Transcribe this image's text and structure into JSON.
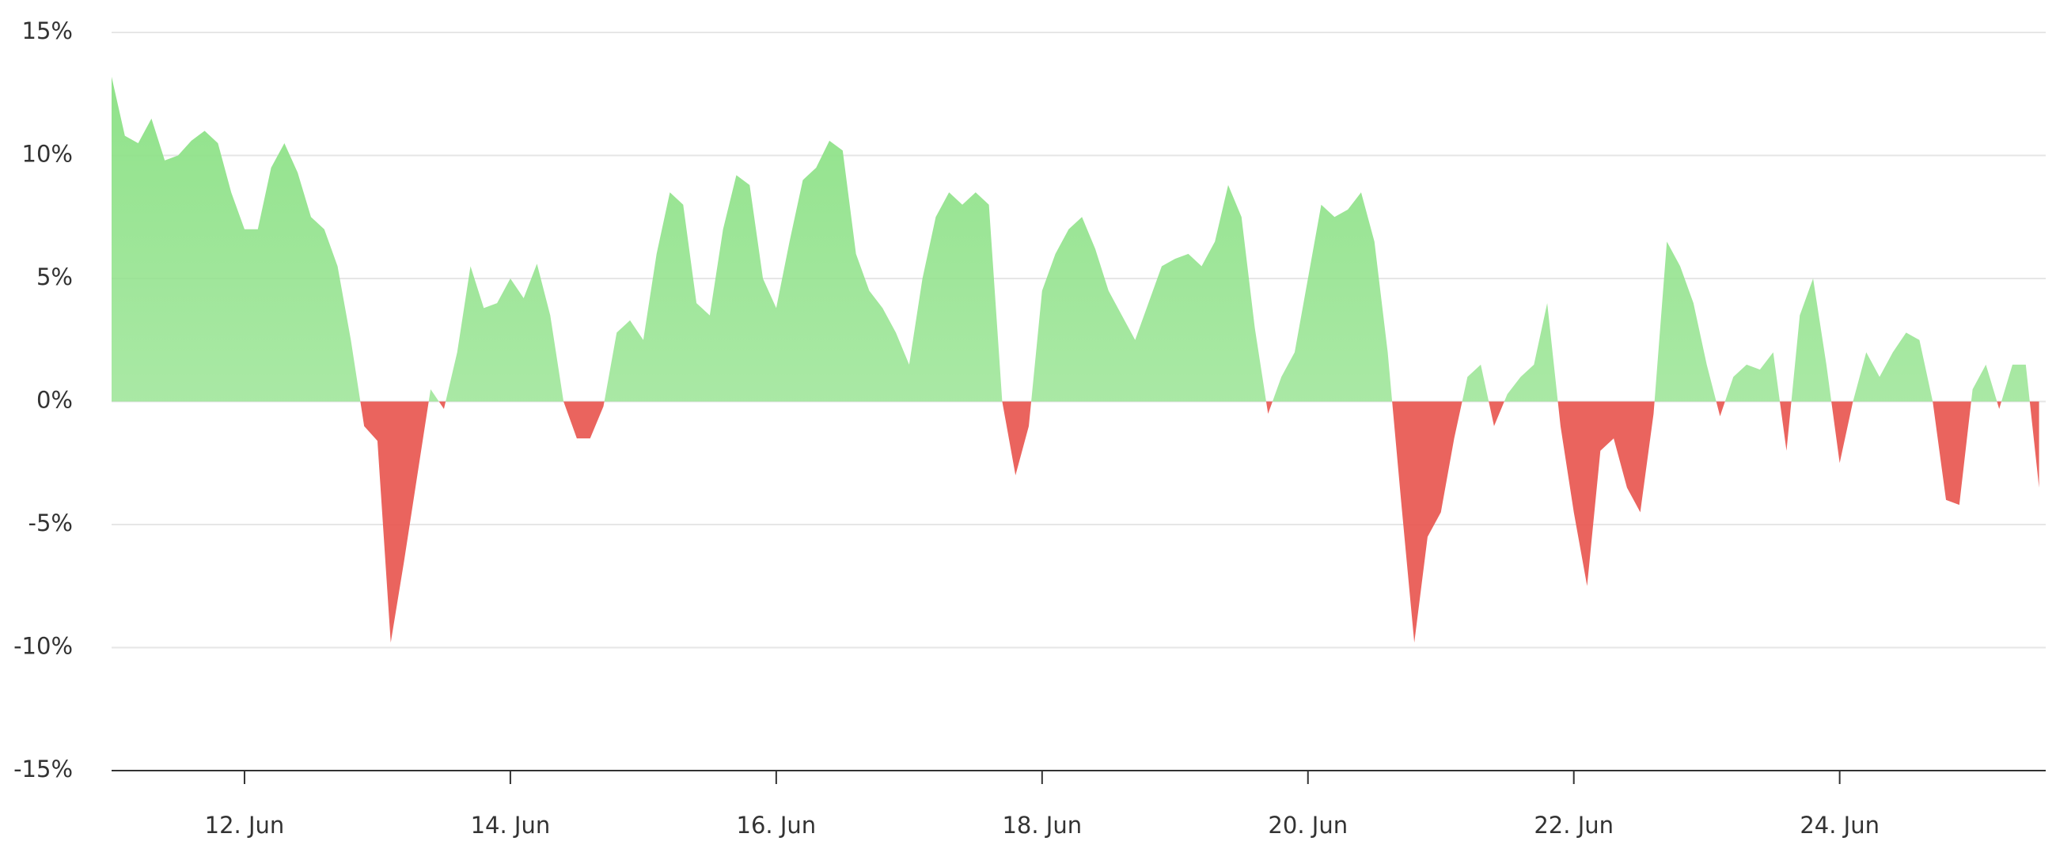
{
  "chart_data": {
    "type": "area",
    "x": [
      11.0,
      11.1,
      11.2,
      11.3,
      11.4,
      11.5,
      11.6,
      11.7,
      11.8,
      11.9,
      12.0,
      12.1,
      12.2,
      12.3,
      12.4,
      12.5,
      12.6,
      12.7,
      12.8,
      12.9,
      13.0,
      13.1,
      13.2,
      13.3,
      13.4,
      13.5,
      13.6,
      13.7,
      13.8,
      13.9,
      14.0,
      14.1,
      14.2,
      14.3,
      14.4,
      14.5,
      14.6,
      14.7,
      14.8,
      14.9,
      15.0,
      15.1,
      15.2,
      15.3,
      15.4,
      15.5,
      15.6,
      15.7,
      15.8,
      15.9,
      16.0,
      16.1,
      16.2,
      16.3,
      16.4,
      16.5,
      16.6,
      16.7,
      16.8,
      16.9,
      17.0,
      17.1,
      17.2,
      17.3,
      17.4,
      17.5,
      17.6,
      17.7,
      17.8,
      17.9,
      18.0,
      18.1,
      18.2,
      18.3,
      18.4,
      18.5,
      18.6,
      18.7,
      18.8,
      18.9,
      19.0,
      19.1,
      19.2,
      19.3,
      19.4,
      19.5,
      19.6,
      19.7,
      19.8,
      19.9,
      20.0,
      20.1,
      20.2,
      20.3,
      20.4,
      20.5,
      20.6,
      20.7,
      20.8,
      20.9,
      21.0,
      21.1,
      21.2,
      21.3,
      21.4,
      21.5,
      21.6,
      21.7,
      21.8,
      21.9,
      22.0,
      22.1,
      22.2,
      22.3,
      22.4,
      22.5,
      22.6,
      22.7,
      22.8,
      22.9,
      23.0,
      23.1,
      23.2,
      23.3,
      23.4,
      23.5,
      23.6,
      23.7,
      23.8,
      23.9,
      24.0,
      24.1,
      24.2,
      24.3,
      24.4,
      24.5,
      24.6,
      24.7,
      24.8,
      24.9,
      25.0,
      25.1,
      25.2,
      25.3,
      25.4,
      25.5
    ],
    "values": [
      13.2,
      10.8,
      10.5,
      11.5,
      9.8,
      10.0,
      10.6,
      11.0,
      10.5,
      8.5,
      7.0,
      7.0,
      9.5,
      10.5,
      9.3,
      7.5,
      7.0,
      5.5,
      2.5,
      -1.0,
      -1.6,
      -9.8,
      -6.5,
      -3.0,
      0.5,
      -0.3,
      2.0,
      5.5,
      3.8,
      4.0,
      5.0,
      4.2,
      5.6,
      3.5,
      0.0,
      -1.5,
      -1.5,
      -0.2,
      2.8,
      3.3,
      2.5,
      6.0,
      8.5,
      8.0,
      4.0,
      3.5,
      7.0,
      9.2,
      8.8,
      5.0,
      3.8,
      6.5,
      9.0,
      9.5,
      10.6,
      10.2,
      6.0,
      4.5,
      3.8,
      2.8,
      1.5,
      5.0,
      7.5,
      8.5,
      8.0,
      8.5,
      8.0,
      0.0,
      -3.0,
      -1.0,
      4.5,
      6.0,
      7.0,
      7.5,
      6.2,
      4.5,
      3.5,
      2.5,
      4.0,
      5.5,
      5.8,
      6.0,
      5.5,
      6.5,
      8.8,
      7.5,
      3.0,
      -0.5,
      1.0,
      2.0,
      5.0,
      8.0,
      7.5,
      7.8,
      8.5,
      6.5,
      2.0,
      -4.0,
      -9.8,
      -5.5,
      -4.5,
      -1.5,
      1.0,
      1.5,
      -1.0,
      0.3,
      1.0,
      1.5,
      4.0,
      -1.0,
      -4.5,
      -7.5,
      -2.0,
      -1.5,
      -3.5,
      -4.5,
      -0.5,
      6.5,
      5.5,
      4.0,
      1.5,
      -0.6,
      1.0,
      1.5,
      1.3,
      2.0,
      -2.0,
      3.5,
      5.0,
      1.5,
      -2.5,
      0.0,
      2.0,
      1.0,
      2.0,
      2.8,
      2.5,
      0.0,
      -4.0,
      -4.2,
      0.5,
      1.5,
      -0.3,
      1.5,
      1.5,
      -3.5
    ],
    "positive_color": "#90e28a",
    "negative_color": "#e8534c",
    "xlim": [
      11.0,
      25.55
    ],
    "xticks": [
      {
        "value": 12,
        "label": "12. Jun"
      },
      {
        "value": 14,
        "label": "14. Jun"
      },
      {
        "value": 16,
        "label": "16. Jun"
      },
      {
        "value": 18,
        "label": "18. Jun"
      },
      {
        "value": 20,
        "label": "20. Jun"
      },
      {
        "value": 22,
        "label": "22. Jun"
      },
      {
        "value": 24,
        "label": "24. Jun"
      }
    ],
    "ylim": [
      -15,
      15
    ],
    "yticks": [
      {
        "value": -15,
        "label": "-15%"
      },
      {
        "value": -10,
        "label": "-10%"
      },
      {
        "value": -5,
        "label": "-5%"
      },
      {
        "value": 0,
        "label": "0%"
      },
      {
        "value": 5,
        "label": "5%"
      },
      {
        "value": 10,
        "label": "10%"
      },
      {
        "value": 15,
        "label": "15%"
      }
    ],
    "grid": true
  }
}
